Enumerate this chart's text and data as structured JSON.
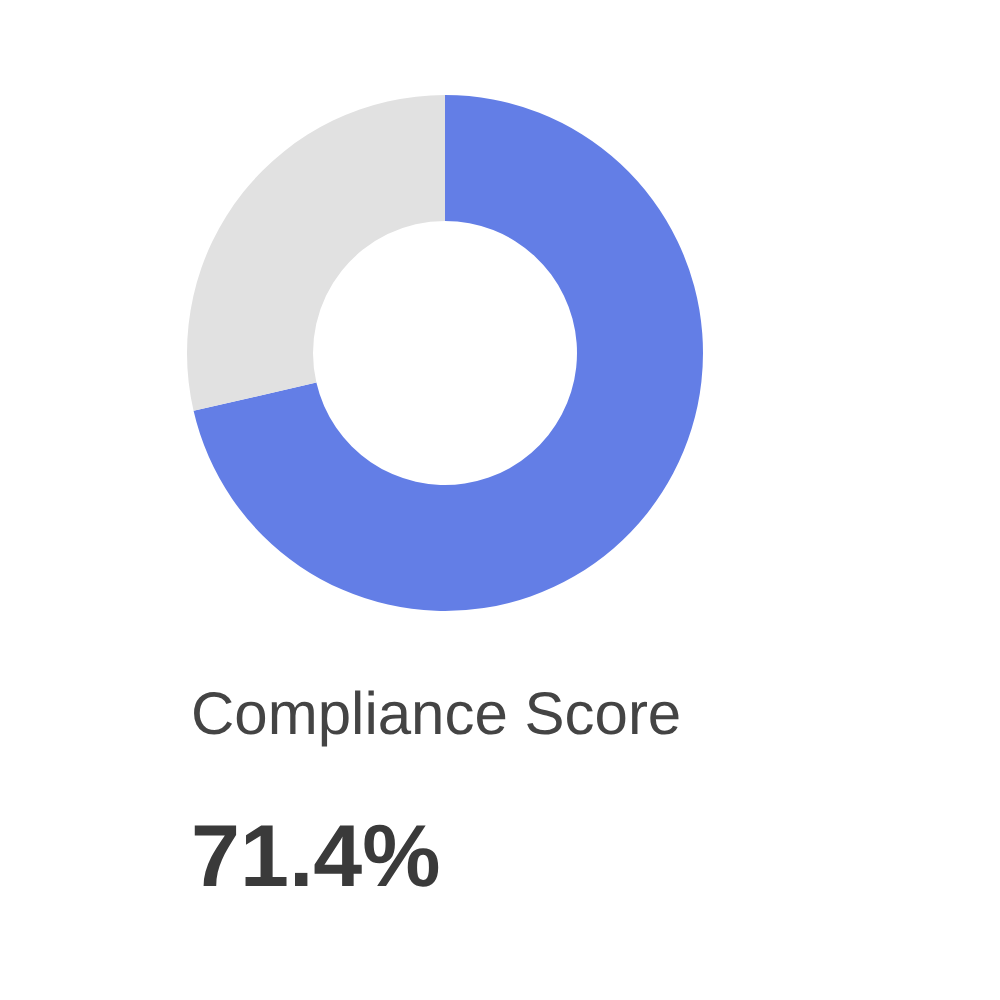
{
  "chart_data": {
    "type": "donut",
    "title": "Compliance Score",
    "categories": [
      null,
      null
    ],
    "values": [
      71.4,
      28.6
    ],
    "colors": [
      "#637ee6",
      "#e1e1e1"
    ],
    "annotations": [
      "71.4%"
    ]
  }
}
